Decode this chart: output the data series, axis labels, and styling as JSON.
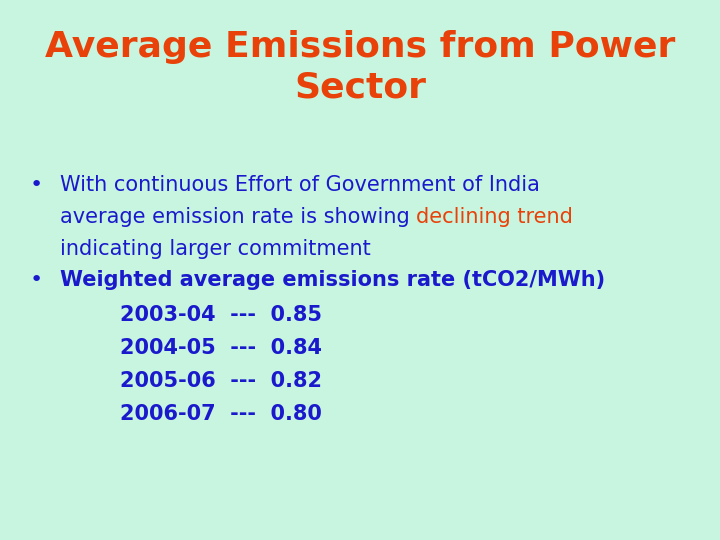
{
  "title_line1": "Average Emissions from Power",
  "title_line2": "Sector",
  "title_color": "#E8420A",
  "background_color": "#C8F5DF",
  "bullet_color": "#1A1ACC",
  "highlight_color": "#E8420A",
  "bullet1_part1": "With continuous Effort of Government of India",
  "bullet1_part2a": "average emission rate is showing ",
  "bullet1_highlight": "declining trend",
  "bullet1_part3": "indicating larger commitment",
  "bullet2_label": "Weighted average emissions rate (tCO2/MWh)",
  "data_rows": [
    {
      "year": "2003-04",
      "sep": "---",
      "value": "0.85"
    },
    {
      "year": "2004-05",
      "sep": "---",
      "value": "0.84"
    },
    {
      "year": "2005-06",
      "sep": "---",
      "value": "0.82"
    },
    {
      "year": "2006-07",
      "sep": "---",
      "value": "0.80"
    }
  ],
  "title_fontsize": 26,
  "body_fontsize": 15,
  "data_fontsize": 15,
  "fig_width": 7.2,
  "fig_height": 5.4,
  "dpi": 100
}
